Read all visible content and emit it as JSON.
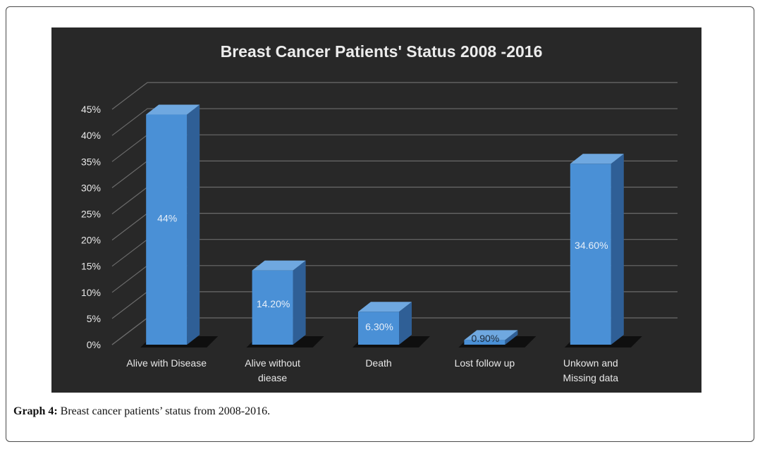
{
  "caption": {
    "label": "Graph 4:",
    "text": " Breast cancer patients’ status from 2008-2016."
  },
  "chart_data": {
    "type": "bar",
    "title": "Breast Cancer Patients' Status  2008 -2016",
    "categories": [
      [
        "Alive with Disease"
      ],
      [
        "Alive without",
        "diease"
      ],
      [
        "Death"
      ],
      [
        "Lost follow up"
      ],
      [
        "Unkown and",
        "Missing data"
      ]
    ],
    "values": [
      44,
      14.2,
      6.3,
      0.9,
      34.6
    ],
    "data_labels": [
      "44%",
      "14.20%",
      "6.30%",
      "0.90%",
      "34.60%"
    ],
    "y_ticks": [
      "0%",
      "5%",
      "10%",
      "15%",
      "20%",
      "25%",
      "30%",
      "35%",
      "40%",
      "45%"
    ],
    "ylim": [
      0,
      45
    ],
    "xlabel": "",
    "ylabel": "",
    "grid": true,
    "colors": {
      "background": "#282828",
      "bar_front": "#4a90d6",
      "bar_top": "#6fa8e0",
      "bar_side": "#2f5f96",
      "grid": "#6b6b6b",
      "text": "#e8e8e8"
    }
  }
}
